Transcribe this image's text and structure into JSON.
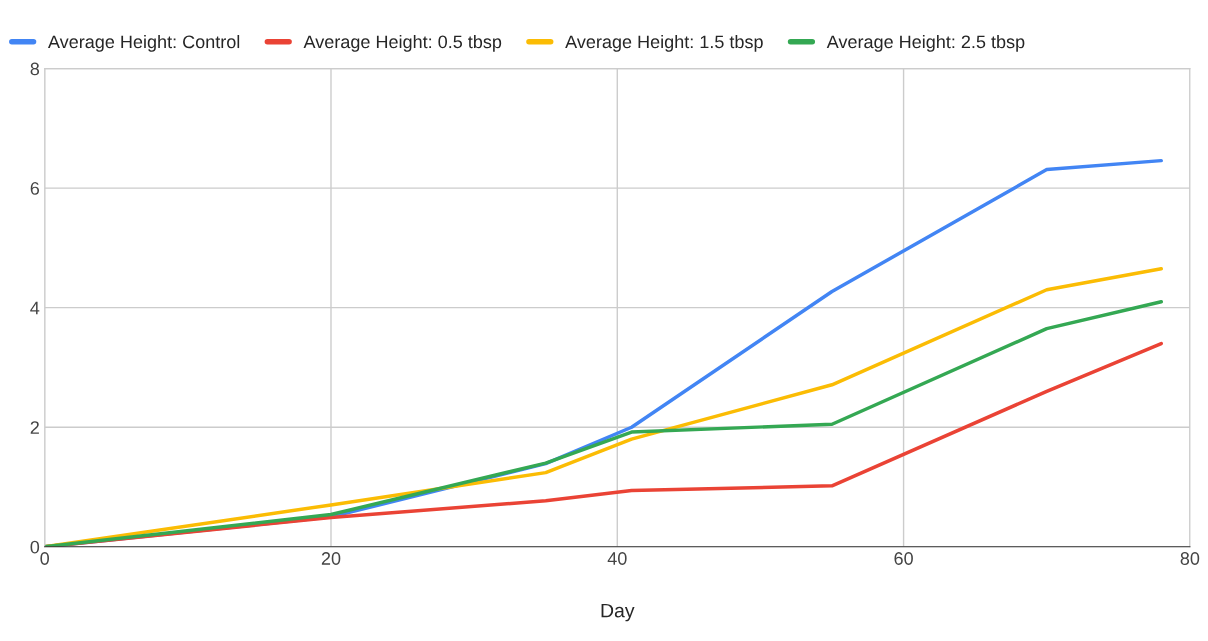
{
  "chart_data": {
    "type": "line",
    "xlabel": "Day",
    "x": [
      0,
      20,
      35,
      41,
      55,
      70,
      78
    ],
    "series": [
      {
        "name": "Average Height: Control",
        "color": "#4285f4",
        "values": [
          0,
          0.5,
          1.39,
          2.0,
          4.27,
          6.31,
          6.46
        ]
      },
      {
        "name": "Average Height: 0.5 tbsp",
        "color": "#ea4335",
        "values": [
          0,
          0.49,
          0.77,
          0.94,
          1.02,
          2.6,
          3.4
        ]
      },
      {
        "name": "Average Height: 1.5 tbsp",
        "color": "#fbbc04",
        "values": [
          0,
          0.7,
          1.24,
          1.8,
          2.71,
          4.3,
          4.65
        ]
      },
      {
        "name": "Average Height: 2.5 tbsp",
        "color": "#34a853",
        "values": [
          0,
          0.54,
          1.4,
          1.92,
          2.05,
          3.65,
          4.1
        ]
      }
    ],
    "xlim": [
      0,
      80
    ],
    "xticks": [
      0,
      20,
      40,
      60,
      80
    ],
    "ylim": [
      0,
      8
    ],
    "yticks": [
      0,
      2,
      4,
      6,
      8
    ],
    "grid": true,
    "legend": "top left"
  }
}
